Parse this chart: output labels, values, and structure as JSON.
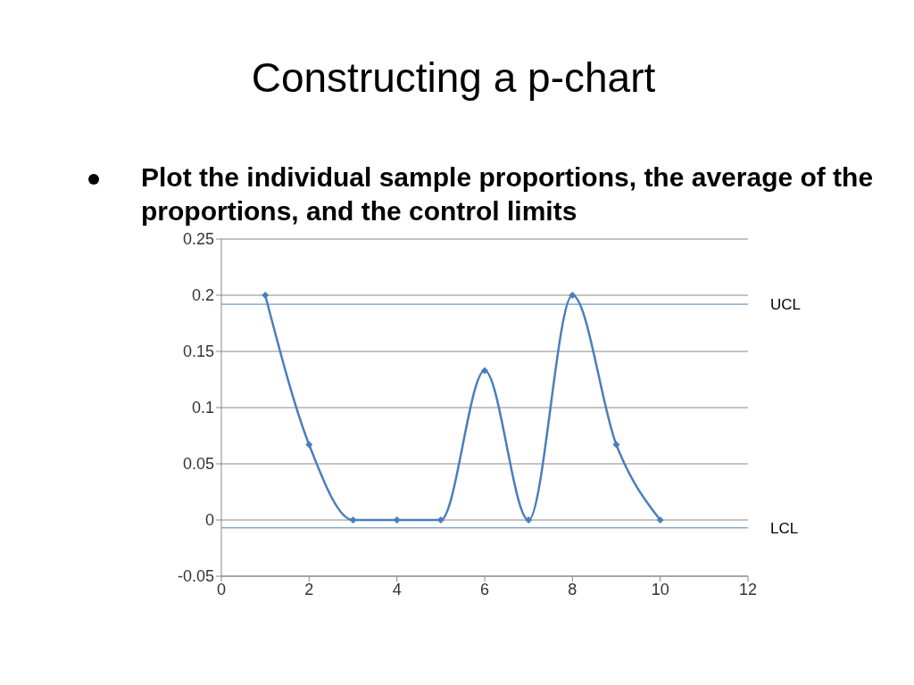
{
  "chart_data": {
    "type": "line",
    "title": "Constructing a p-chart",
    "subtitle": "Plot the individual sample proportions, the average of the proportions, and the control limits",
    "x": [
      1,
      2,
      3,
      4,
      5,
      6,
      7,
      8,
      9,
      10
    ],
    "series": [
      {
        "color": "#4a7ebb",
        "values": [
          0.2,
          0.067,
          0,
          0,
          0,
          0.133,
          0,
          0.2,
          0.067,
          0
        ]
      }
    ],
    "xlim": [
      0,
      12
    ],
    "xticks": [
      0,
      2,
      4,
      6,
      8,
      10,
      12
    ],
    "ylim": [
      -0.05,
      0.25
    ],
    "yticks": [
      -0.05,
      0,
      0.05,
      0.1,
      0.15,
      0.2,
      0.25
    ],
    "grid": "y",
    "marker": "diamond",
    "line_style": "solid",
    "ref_lines": [
      {
        "axis": "y",
        "value": 0.192,
        "label": "UCL",
        "color": "#4a7ebb"
      },
      {
        "axis": "y",
        "value": -0.007,
        "label": "LCL",
        "color": "#4a7ebb"
      }
    ]
  }
}
